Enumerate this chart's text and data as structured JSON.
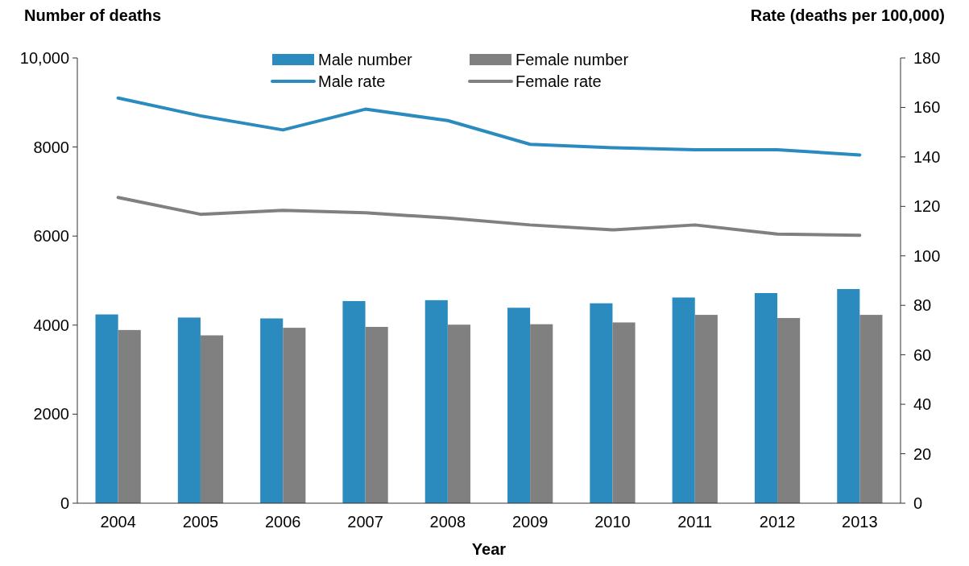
{
  "chart_data": {
    "type": "bar",
    "xlabel": "Year",
    "ylabel": "Number of deaths",
    "y2label": "Rate (deaths per 100,000)",
    "categories": [
      "2004",
      "2005",
      "2006",
      "2007",
      "2008",
      "2009",
      "2010",
      "2011",
      "2012",
      "2013"
    ],
    "series": [
      {
        "name": "Male number",
        "color": "#2b8bbf",
        "values": [
          4240,
          4170,
          4150,
          4540,
          4560,
          4390,
          4490,
          4620,
          4720,
          4810
        ]
      },
      {
        "name": "Female number",
        "color": "#808080",
        "values": [
          3890,
          3770,
          3940,
          3960,
          4010,
          4020,
          4060,
          4230,
          4160,
          4230
        ]
      },
      {
        "name": "Male rate",
        "type": "line",
        "axis": "y2",
        "color": "#2b8bbf",
        "values": [
          163.8,
          156.6,
          150.9,
          159.3,
          154.7,
          145.1,
          143.7,
          142.9,
          142.9,
          140.8
        ]
      },
      {
        "name": "Female rate",
        "type": "line",
        "axis": "y2",
        "color": "#808080",
        "values": [
          123.6,
          116.8,
          118.4,
          117.4,
          115.3,
          112.5,
          110.5,
          112.5,
          108.8,
          108.3
        ]
      }
    ],
    "ylim": [
      0,
      10000
    ],
    "yticks": [
      0,
      2000,
      4000,
      6000,
      8000,
      {
        "value": 10000,
        "label": "10,000"
      }
    ],
    "y2lim": [
      0,
      180
    ],
    "y2ticks": [
      0,
      20,
      40,
      60,
      80,
      100,
      120,
      140,
      160,
      180
    ],
    "grid": false,
    "legend": "top",
    "marker": "none",
    "line_style": "solid"
  }
}
